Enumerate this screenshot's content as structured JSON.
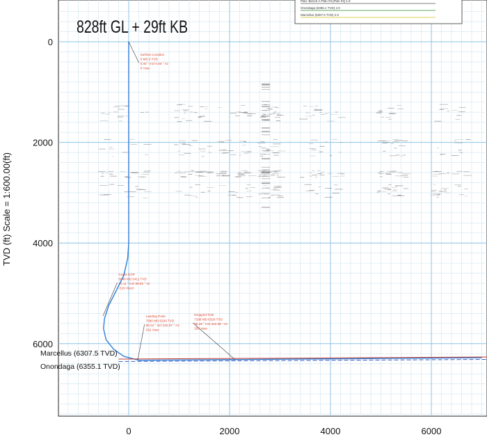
{
  "chart_data": {
    "type": "line",
    "title": "828ft GL + 29ft KB",
    "ylabel": "TVD (ft) Scale = 1:600.00(ft)",
    "xlabel": "",
    "xlim": [
      -1400,
      7000
    ],
    "ylim": [
      7400,
      -700
    ],
    "y_inverted": true,
    "x_ticks": [
      0,
      2000,
      4000,
      6000
    ],
    "y_ticks": [
      0,
      2000,
      4000,
      6000
    ],
    "grid": true,
    "legend_position": "top-right",
    "legend_entries": [
      {
        "text": "Plan: Bench A-Plan #3 [Plan #2] 1.0",
        "color": "#555555"
      },
      {
        "text": "Onondaga (6355.1 TVD) 2.0",
        "color": "#2e8b2e"
      },
      {
        "text": "Marcellus (6307.5 TVD) 2.0",
        "color": "#d4c21a"
      }
    ],
    "series": [
      {
        "color": "#2b7bd6",
        "x": [
          0,
          0,
          0,
          0,
          0,
          -20,
          -100,
          -250,
          -400,
          -480,
          -500,
          -450,
          -300,
          -100,
          200,
          1000,
          3000,
          5000,
          7000
        ],
        "y": [
          0,
          1000,
          2000,
          3000,
          4000,
          4300,
          4650,
          4950,
          5250,
          5500,
          5700,
          5920,
          6110,
          6250,
          6330,
          6325,
          6310,
          6295,
          6280
        ]
      }
    ],
    "formation_lines": [
      {
        "label": "Marcellus (6307.5 TVD)",
        "tvd": 6307.5,
        "x_start": -200
      },
      {
        "label": "Onondaga (6355.1 TVD)",
        "tvd": 6355.1,
        "x_start": -200
      }
    ],
    "annotations": [
      {
        "x": 0,
        "y": 0,
        "text_x": 230,
        "text_y": 280,
        "lines": [
          "Surface Location",
          "0 MD 0 TVD",
          "0.00 ° Incl 0.00 ° Az",
          "0 Vsec"
        ]
      },
      {
        "x": -510,
        "y": 5450,
        "text_x": -200,
        "text_y": 4650,
        "lines": [
          "Curve KOP",
          "5648 MD 5411 TVD",
          "23.11 ° Incl 86.83 ° Az",
          "-519 Vsect"
        ]
      },
      {
        "x": 180,
        "y": 6320,
        "text_x": 340,
        "text_y": 5480,
        "lines": [
          "Landing Point",
          "7660 MD 6326 TVD",
          "85.22 ° Incl 342.87 ° Az",
          "291 Vsec"
        ]
      },
      {
        "x": 2100,
        "y": 6310,
        "text_x": 1300,
        "text_y": 5450,
        "lines": [
          "Dropped TVD",
          "7186 MD 6328 TVD",
          "85.28 ° Incl 342.69 ° Az",
          "326 Vsec"
        ]
      }
    ]
  }
}
